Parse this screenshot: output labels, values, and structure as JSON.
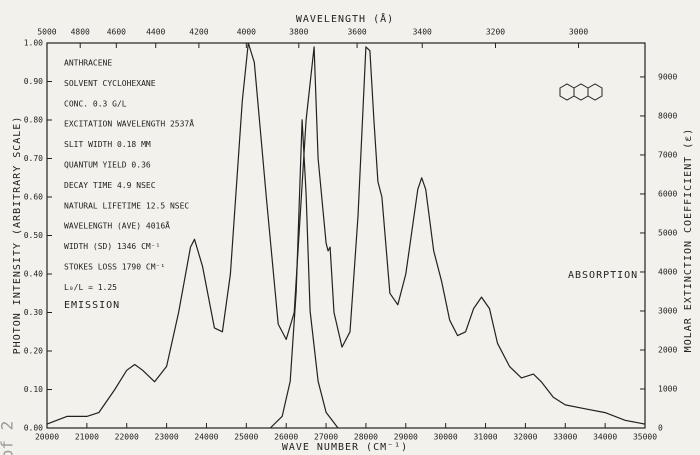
{
  "chart_data": {
    "type": "line",
    "title": "WAVELENGTH (Å)",
    "x_label": "WAVE NUMBER (CM⁻¹)",
    "y_label": "PHOTON INTENSITY (ARBITRARY SCALE)",
    "y2_label": "MOLAR EXTINCTION COEFFICIENT (ε)",
    "annotations": [
      "ANTHRACENE",
      "SOLVENT CYCLOHEXANE",
      "CONC. 0.3 G/L",
      "EXCITATION WAVELENGTH 2537Å",
      "SLIT WIDTH 0.18 MM",
      "QUANTUM YIELD 0.36",
      "DECAY TIME 4.9 NSEC",
      "NATURAL LIFETIME 12.5 NSEC",
      "WAVELENGTH (AVE) 4016Å",
      "WIDTH (SD) 1346 CM⁻¹",
      "STOKES LOSS 1790 CM⁻¹",
      "L₀/L = 1.25"
    ],
    "page_marker": "of 2",
    "xlim": [
      20000,
      35000
    ],
    "xticks": [
      20000,
      21000,
      22000,
      23000,
      24000,
      25000,
      26000,
      27000,
      28000,
      29000,
      30000,
      31000,
      32000,
      33000,
      34000,
      35000
    ],
    "x2ticks": [
      {
        "value": 20000,
        "label": "5000"
      },
      {
        "value": 20833,
        "label": "4800"
      },
      {
        "value": 21739,
        "label": "4600"
      },
      {
        "value": 22727,
        "label": "4400"
      },
      {
        "value": 23810,
        "label": "4200"
      },
      {
        "value": 25000,
        "label": "4000"
      },
      {
        "value": 26316,
        "label": "3800"
      },
      {
        "value": 27778,
        "label": "3600"
      },
      {
        "value": 29412,
        "label": "3400"
      },
      {
        "value": 31250,
        "label": "3200"
      },
      {
        "value": 33333,
        "label": "3000"
      }
    ],
    "ylim": [
      0,
      1
    ],
    "yticks": [
      {
        "value": 0,
        "label": "0.00"
      },
      {
        "value": 0.1,
        "label": "0.10"
      },
      {
        "value": 0.2,
        "label": "0.20"
      },
      {
        "value": 0.3,
        "label": "0.30"
      },
      {
        "value": 0.4,
        "label": "0.40"
      },
      {
        "value": 0.5,
        "label": "0.50"
      },
      {
        "value": 0.6,
        "label": "0.60"
      },
      {
        "value": 0.7,
        "label": "0.70"
      },
      {
        "value": 0.8,
        "label": "0.80"
      },
      {
        "value": 0.9,
        "label": "0.90"
      },
      {
        "value": 1,
        "label": "1.00"
      }
    ],
    "y2lim": [
      0,
      9870
    ],
    "y2ticks": [
      0,
      1000,
      2000,
      3000,
      4000,
      5000,
      6000,
      7000,
      8000,
      9000
    ],
    "grid": false,
    "series": [
      {
        "name": "EMISSION",
        "color": "#222222",
        "x": [
          20000,
          20500,
          21000,
          21300,
          21700,
          22000,
          22200,
          22400,
          22700,
          23000,
          23300,
          23600,
          23700,
          23900,
          24200,
          24400,
          24600,
          24900,
          25050,
          25200,
          25500,
          25800,
          26000,
          26200,
          26500,
          26700,
          26800,
          27000,
          27050,
          27100,
          27200,
          27400,
          27600,
          27800,
          28000,
          28100,
          28200,
          28300,
          28400,
          28600,
          28800,
          29000,
          29300,
          29400,
          29500,
          29700,
          29900,
          30100,
          30300,
          30500,
          30700,
          30900,
          31100,
          31300,
          31600,
          31900,
          32200,
          32400,
          32700,
          33000,
          33500,
          34000,
          34500,
          35000
        ],
        "values": [
          0.01,
          0.03,
          0.03,
          0.04,
          0.1,
          0.15,
          0.165,
          0.15,
          0.12,
          0.16,
          0.3,
          0.47,
          0.49,
          0.42,
          0.26,
          0.25,
          0.4,
          0.85,
          1.0,
          0.95,
          0.6,
          0.27,
          0.23,
          0.3,
          0.8,
          0.99,
          0.7,
          0.48,
          0.46,
          0.47,
          0.3,
          0.21,
          0.25,
          0.55,
          0.99,
          0.98,
          0.8,
          0.64,
          0.6,
          0.35,
          0.32,
          0.4,
          0.62,
          0.65,
          0.62,
          0.46,
          0.38,
          0.28,
          0.24,
          0.25,
          0.31,
          0.34,
          0.31,
          0.22,
          0.16,
          0.13,
          0.14,
          0.12,
          0.08,
          0.06,
          0.05,
          0.04,
          0.02,
          0.01
        ]
      },
      {
        "name": "ABSORPTION",
        "color": "#222222",
        "axis": "y2",
        "x": [
          25600,
          25900,
          26100,
          26250,
          26400,
          26500,
          26600,
          26800,
          27000,
          27300
        ],
        "values": [
          0,
          300,
          1200,
          3500,
          7900,
          6000,
          3000,
          1200,
          400,
          0
        ]
      }
    ]
  }
}
